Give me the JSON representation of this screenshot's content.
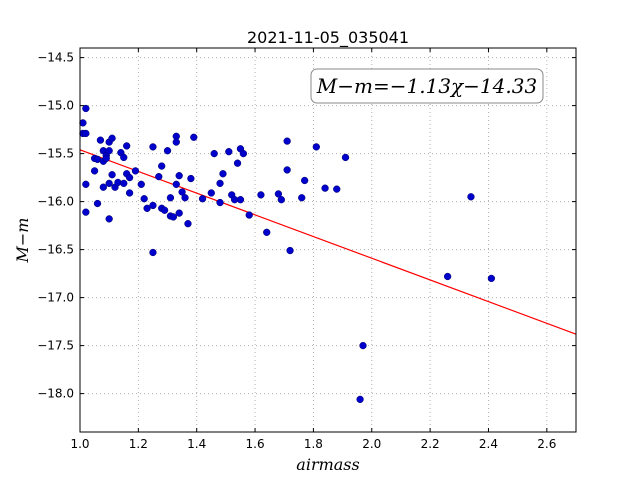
{
  "chart_data": {
    "type": "scatter",
    "title": "2021-11-05_035041",
    "xlabel": "airmass",
    "ylabel": "M−m",
    "xlim": [
      1.0,
      2.7
    ],
    "ylim": [
      -14.4,
      -18.4
    ],
    "y_inverted": true,
    "grid": true,
    "x_ticks": [
      1.0,
      1.2,
      1.4,
      1.6,
      1.8,
      2.0,
      2.2,
      2.4,
      2.6
    ],
    "x_tick_labels": [
      "1.0",
      "1.2",
      "1.4",
      "1.6",
      "1.8",
      "2.0",
      "2.2",
      "2.4",
      "2.6"
    ],
    "y_ticks": [
      -14.5,
      -15.0,
      -15.5,
      -16.0,
      -16.5,
      -17.0,
      -17.5,
      -18.0
    ],
    "y_tick_labels": [
      "−14.5",
      "−15.0",
      "−15.5",
      "−16.0",
      "−16.5",
      "−17.0",
      "−17.5",
      "−18.0"
    ],
    "annotation": "M−m=−1.13χ−14.33",
    "colors": {
      "points": "#0000cc",
      "fit_line": "#ff0000",
      "grid": "#b0b0b0"
    },
    "fit": {
      "slope": -1.13,
      "intercept": -14.33
    },
    "points": [
      [
        1.01,
        -15.18
      ],
      [
        1.01,
        -15.29
      ],
      [
        1.02,
        -15.03
      ],
      [
        1.02,
        -15.29
      ],
      [
        1.02,
        -15.82
      ],
      [
        1.02,
        -16.11
      ],
      [
        1.05,
        -15.55
      ],
      [
        1.05,
        -15.68
      ],
      [
        1.06,
        -16.02
      ],
      [
        1.06,
        -15.56
      ],
      [
        1.07,
        -15.36
      ],
      [
        1.08,
        -15.47
      ],
      [
        1.08,
        -15.58
      ],
      [
        1.08,
        -15.85
      ],
      [
        1.09,
        -15.52
      ],
      [
        1.09,
        -15.55
      ],
      [
        1.1,
        -15.38
      ],
      [
        1.1,
        -15.47
      ],
      [
        1.1,
        -15.81
      ],
      [
        1.1,
        -16.18
      ],
      [
        1.11,
        -15.34
      ],
      [
        1.11,
        -15.72
      ],
      [
        1.12,
        -15.85
      ],
      [
        1.13,
        -15.8
      ],
      [
        1.14,
        -15.49
      ],
      [
        1.15,
        -15.81
      ],
      [
        1.15,
        -15.54
      ],
      [
        1.16,
        -15.42
      ],
      [
        1.16,
        -15.71
      ],
      [
        1.17,
        -15.75
      ],
      [
        1.17,
        -15.91
      ],
      [
        1.19,
        -15.68
      ],
      [
        1.21,
        -15.82
      ],
      [
        1.22,
        -15.97
      ],
      [
        1.23,
        -16.07
      ],
      [
        1.25,
        -15.43
      ],
      [
        1.25,
        -16.04
      ],
      [
        1.25,
        -16.53
      ],
      [
        1.27,
        -15.74
      ],
      [
        1.28,
        -16.07
      ],
      [
        1.28,
        -15.63
      ],
      [
        1.29,
        -16.09
      ],
      [
        1.3,
        -15.47
      ],
      [
        1.31,
        -16.15
      ],
      [
        1.31,
        -15.96
      ],
      [
        1.32,
        -16.16
      ],
      [
        1.33,
        -15.82
      ],
      [
        1.33,
        -15.32
      ],
      [
        1.33,
        -15.38
      ],
      [
        1.34,
        -15.73
      ],
      [
        1.34,
        -16.12
      ],
      [
        1.35,
        -15.9
      ],
      [
        1.36,
        -15.96
      ],
      [
        1.37,
        -16.23
      ],
      [
        1.38,
        -15.76
      ],
      [
        1.39,
        -15.33
      ],
      [
        1.42,
        -15.97
      ],
      [
        1.45,
        -15.91
      ],
      [
        1.46,
        -15.5
      ],
      [
        1.48,
        -15.81
      ],
      [
        1.49,
        -15.71
      ],
      [
        1.48,
        -16.01
      ],
      [
        1.51,
        -15.48
      ],
      [
        1.52,
        -15.93
      ],
      [
        1.53,
        -15.98
      ],
      [
        1.54,
        -15.6
      ],
      [
        1.55,
        -15.45
      ],
      [
        1.56,
        -15.5
      ],
      [
        1.55,
        -15.98
      ],
      [
        1.58,
        -16.14
      ],
      [
        1.62,
        -15.93
      ],
      [
        1.64,
        -16.32
      ],
      [
        1.68,
        -15.92
      ],
      [
        1.69,
        -15.98
      ],
      [
        1.71,
        -15.67
      ],
      [
        1.71,
        -15.37
      ],
      [
        1.72,
        -16.51
      ],
      [
        1.76,
        -15.96
      ],
      [
        1.77,
        -15.78
      ],
      [
        1.81,
        -15.43
      ],
      [
        1.84,
        -15.86
      ],
      [
        1.88,
        -15.87
      ],
      [
        1.91,
        -15.54
      ],
      [
        1.97,
        -17.5
      ],
      [
        1.96,
        -18.06
      ],
      [
        2.26,
        -16.78
      ],
      [
        2.34,
        -15.95
      ],
      [
        2.41,
        -16.8
      ]
    ]
  }
}
